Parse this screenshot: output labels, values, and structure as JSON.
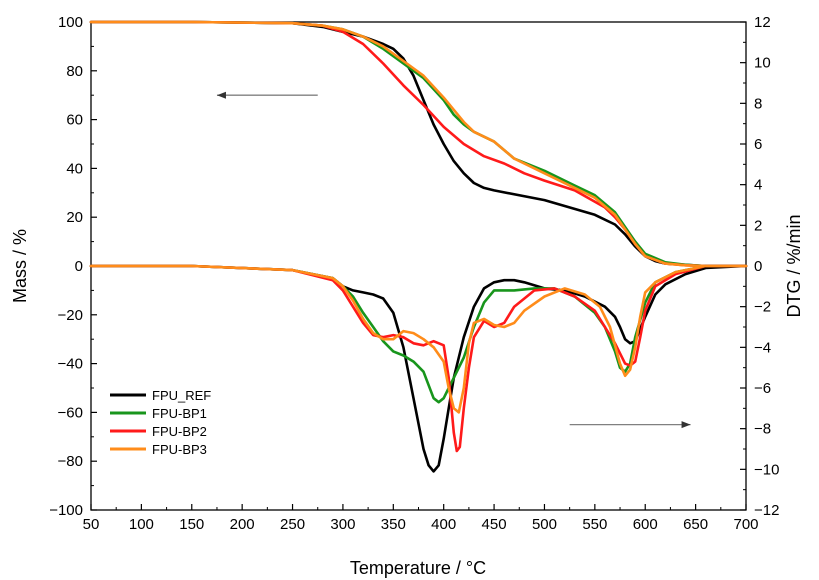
{
  "chart_data": {
    "type": "line",
    "xlabel": "Temperature / °C",
    "ylabel_left": "Mass / %",
    "ylabel_right": "DTG / %/min",
    "xlim": [
      50,
      700
    ],
    "ylim_left": [
      -100,
      100
    ],
    "ylim_right": [
      -12,
      12
    ],
    "x_ticks": [
      50,
      100,
      150,
      200,
      250,
      300,
      350,
      400,
      450,
      500,
      550,
      600,
      650,
      700
    ],
    "y_left_ticks": [
      -100,
      -80,
      -60,
      -40,
      -20,
      0,
      20,
      40,
      60,
      80,
      100
    ],
    "y_right_ticks": [
      -12,
      -10,
      -8,
      -6,
      -4,
      -2,
      0,
      2,
      4,
      6,
      8,
      10,
      12
    ],
    "grid": false,
    "legend_position": "bottom-left",
    "annotations": [
      {
        "type": "arrow",
        "direction": "left",
        "axis": "left",
        "from": [
          275,
          70
        ],
        "to": [
          175,
          70
        ]
      },
      {
        "type": "arrow",
        "direction": "right",
        "axis": "right",
        "from": [
          525,
          -7.8
        ],
        "to": [
          645,
          -7.8
        ]
      }
    ],
    "series": [
      {
        "name": "FPU_REF",
        "color": "#000000",
        "tg": {
          "x": [
            50,
            150,
            250,
            280,
            300,
            320,
            340,
            350,
            360,
            370,
            380,
            390,
            400,
            410,
            420,
            430,
            440,
            450,
            500,
            550,
            570,
            580,
            590,
            600,
            610,
            620,
            640,
            660,
            700
          ],
          "y": [
            100,
            100,
            99.5,
            98,
            96,
            94,
            91,
            89,
            85,
            78,
            68,
            58,
            50,
            43,
            38,
            34,
            32,
            31,
            27,
            21,
            17,
            13,
            8,
            4,
            2,
            1,
            0.5,
            0,
            0
          ]
        },
        "dtg": {
          "x": [
            50,
            150,
            250,
            290,
            300,
            310,
            320,
            330,
            340,
            350,
            360,
            370,
            380,
            385,
            390,
            395,
            400,
            405,
            410,
            420,
            430,
            440,
            450,
            460,
            470,
            480,
            500,
            520,
            540,
            560,
            570,
            575,
            580,
            585,
            590,
            600,
            610,
            620,
            640,
            660,
            700
          ],
          "y": [
            0,
            0,
            -0.2,
            -0.6,
            -1,
            -1.2,
            -1.3,
            -1.4,
            -1.6,
            -2.3,
            -4,
            -6.5,
            -9,
            -9.8,
            -10.1,
            -9.8,
            -8.5,
            -7,
            -5.5,
            -3.5,
            -2,
            -1.1,
            -0.8,
            -0.7,
            -0.7,
            -0.8,
            -1.1,
            -1.2,
            -1.5,
            -2,
            -2.5,
            -3,
            -3.6,
            -3.8,
            -3.7,
            -2.5,
            -1.4,
            -0.9,
            -0.4,
            -0.1,
            0
          ]
        }
      },
      {
        "name": "FPU-BP1",
        "color": "#18951c",
        "tg": {
          "x": [
            50,
            150,
            250,
            280,
            300,
            320,
            340,
            360,
            380,
            400,
            410,
            420,
            430,
            440,
            450,
            470,
            500,
            530,
            550,
            570,
            580,
            590,
            600,
            620,
            640,
            660,
            700
          ],
          "y": [
            100,
            100,
            99.5,
            98.5,
            97,
            94,
            89,
            83,
            77,
            68,
            62,
            58,
            55,
            53,
            51,
            44,
            39,
            33,
            29,
            22,
            16,
            10,
            5,
            1.5,
            0.5,
            0,
            0
          ]
        },
        "dtg": {
          "x": [
            50,
            150,
            250,
            290,
            300,
            310,
            320,
            330,
            340,
            350,
            360,
            370,
            380,
            390,
            395,
            400,
            405,
            410,
            420,
            430,
            440,
            450,
            460,
            470,
            490,
            510,
            530,
            550,
            560,
            570,
            575,
            580,
            585,
            590,
            600,
            610,
            630,
            660,
            700
          ],
          "y": [
            0,
            0,
            -0.2,
            -0.6,
            -1,
            -1.5,
            -2.3,
            -3,
            -3.7,
            -4.2,
            -4.4,
            -4.7,
            -5.2,
            -6.5,
            -6.7,
            -6.5,
            -6,
            -5.5,
            -4.5,
            -3,
            -1.8,
            -1.2,
            -1.2,
            -1.2,
            -1.1,
            -1.1,
            -1.5,
            -2.3,
            -3,
            -4.2,
            -5,
            -5.2,
            -4.8,
            -3.5,
            -1.8,
            -0.8,
            -0.3,
            0,
            0
          ]
        }
      },
      {
        "name": "FPU-BP2",
        "color": "#ff1a1a",
        "tg": {
          "x": [
            50,
            150,
            250,
            280,
            300,
            320,
            340,
            360,
            380,
            400,
            420,
            440,
            460,
            480,
            500,
            530,
            560,
            570,
            580,
            590,
            600,
            620,
            640,
            660,
            700
          ],
          "y": [
            100,
            100,
            99.5,
            98.5,
            96,
            91,
            83,
            74,
            66,
            57,
            50,
            45,
            42,
            38,
            35,
            31,
            24,
            20,
            15,
            9,
            4,
            1,
            0.3,
            0,
            0
          ]
        },
        "dtg": {
          "x": [
            50,
            150,
            250,
            290,
            300,
            310,
            320,
            330,
            340,
            350,
            360,
            370,
            380,
            390,
            400,
            405,
            410,
            413,
            416,
            420,
            425,
            430,
            440,
            450,
            460,
            470,
            490,
            510,
            530,
            550,
            570,
            580,
            585,
            590,
            595,
            600,
            610,
            630,
            660,
            700
          ],
          "y": [
            0,
            0,
            -0.2,
            -0.7,
            -1.2,
            -2,
            -2.8,
            -3.4,
            -3.5,
            -3.4,
            -3.5,
            -3.8,
            -3.9,
            -3.7,
            -3.9,
            -5.5,
            -8.2,
            -9.1,
            -8.9,
            -7,
            -5,
            -3.5,
            -2.7,
            -3,
            -2.8,
            -2,
            -1.2,
            -1.1,
            -1.5,
            -2.2,
            -3.8,
            -4.8,
            -4.9,
            -4.7,
            -3.5,
            -2.2,
            -1,
            -0.4,
            0,
            0
          ]
        }
      },
      {
        "name": "FPU-BP3",
        "color": "#ff8c1a",
        "tg": {
          "x": [
            50,
            150,
            250,
            280,
            300,
            320,
            340,
            360,
            380,
            400,
            410,
            420,
            430,
            440,
            450,
            470,
            500,
            530,
            550,
            570,
            580,
            590,
            600,
            620,
            640,
            660,
            700
          ],
          "y": [
            100,
            100,
            99.5,
            98.5,
            97,
            94,
            90,
            84,
            78,
            69,
            64,
            59,
            55,
            53,
            51,
            44,
            38,
            32,
            28,
            21,
            15,
            9,
            4,
            1,
            0.3,
            0,
            0
          ]
        },
        "dtg": {
          "x": [
            50,
            150,
            250,
            290,
            300,
            310,
            320,
            330,
            340,
            350,
            360,
            370,
            380,
            390,
            400,
            405,
            410,
            415,
            420,
            425,
            430,
            440,
            450,
            460,
            470,
            480,
            500,
            520,
            540,
            555,
            565,
            575,
            580,
            585,
            590,
            595,
            600,
            610,
            630,
            660,
            700
          ],
          "y": [
            0,
            0,
            -0.2,
            -0.6,
            -1,
            -1.7,
            -2.6,
            -3.3,
            -3.6,
            -3.6,
            -3.2,
            -3.3,
            -3.6,
            -4,
            -4.7,
            -6,
            -7,
            -7.2,
            -6,
            -3.8,
            -2.8,
            -2.6,
            -2.9,
            -3,
            -2.8,
            -2.2,
            -1.5,
            -1.1,
            -1.4,
            -2,
            -3,
            -4.8,
            -5.4,
            -5.1,
            -4,
            -2.5,
            -1.3,
            -0.8,
            -0.3,
            0,
            0
          ]
        }
      }
    ]
  }
}
